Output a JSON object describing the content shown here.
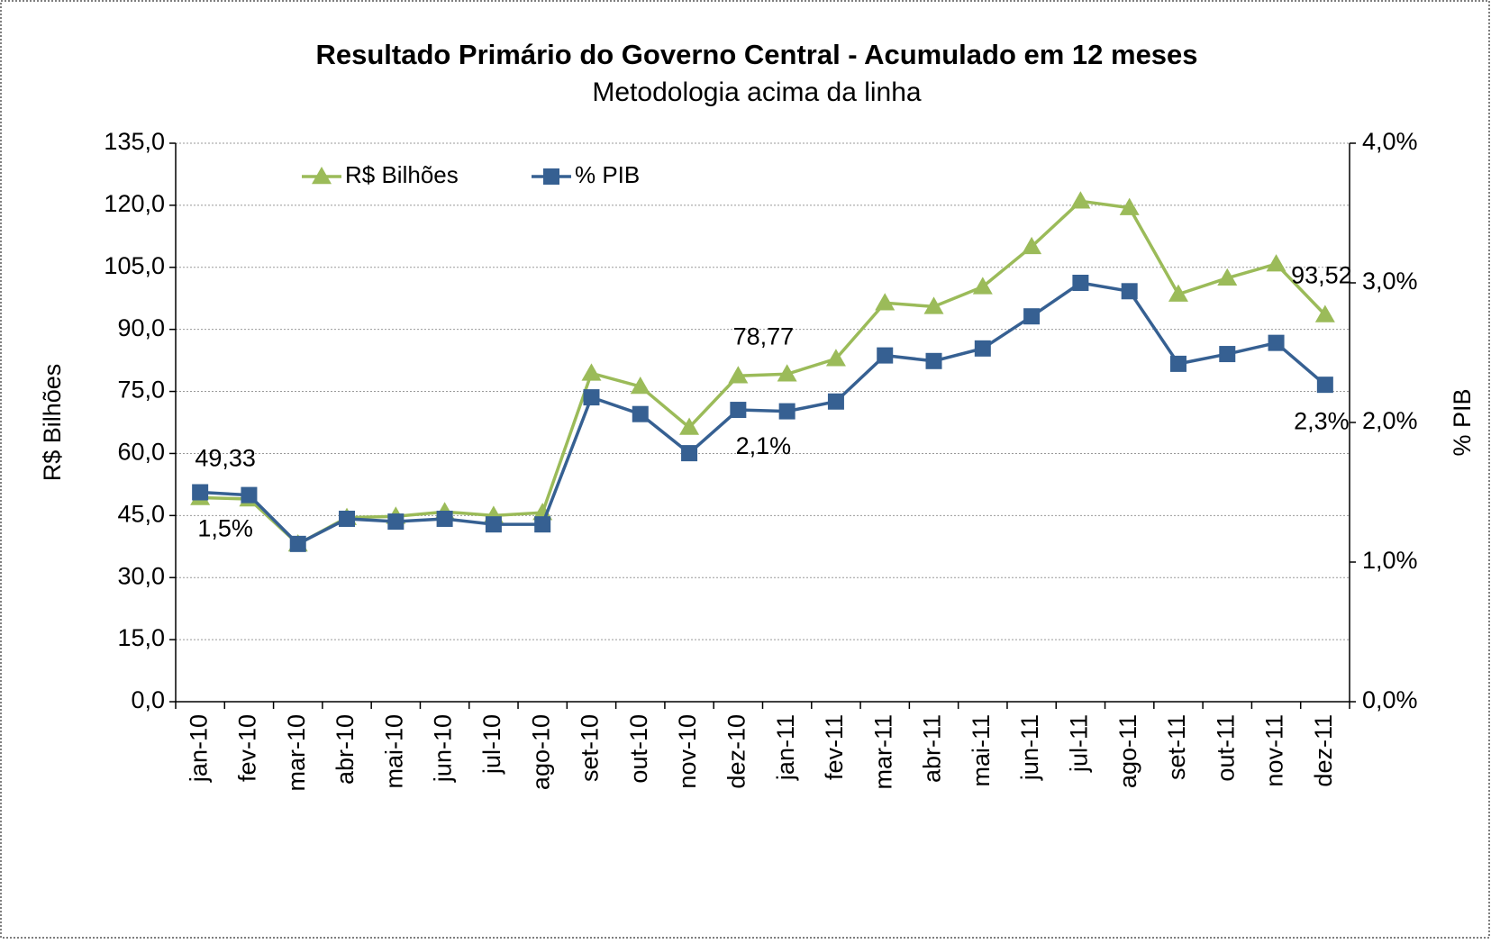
{
  "chart_data": {
    "type": "line",
    "title": "Resultado Primário do Governo Central - Acumulado em 12 meses",
    "subtitle": "Metodologia acima da linha",
    "y_label": "R$ Bilhões",
    "y2_label": "% PIB",
    "categories": [
      "jan-10",
      "fev-10",
      "mar-10",
      "abr-10",
      "mai-10",
      "jun-10",
      "jul-10",
      "ago-10",
      "set-10",
      "out-10",
      "nov-10",
      "dez-10",
      "jan-11",
      "fev-11",
      "mar-11",
      "abr-11",
      "mai-11",
      "jun-11",
      "jul-11",
      "ago-11",
      "set-11",
      "out-11",
      "nov-11",
      "dez-11"
    ],
    "series": [
      {
        "name": "R$ Bilhões",
        "color": "#9bbb59",
        "marker": "triangle",
        "values": [
          49.33,
          49.0,
          38.1,
          44.5,
          44.8,
          45.9,
          45.0,
          45.7,
          79.4,
          76.2,
          66.3,
          78.77,
          79.2,
          82.9,
          96.4,
          95.5,
          100.3,
          110.0,
          121.0,
          119.4,
          98.5,
          102.4,
          105.8,
          93.52
        ],
        "value_labels": [
          "49,33",
          null,
          null,
          null,
          null,
          null,
          null,
          null,
          null,
          null,
          null,
          "78,77",
          null,
          null,
          null,
          null,
          null,
          null,
          null,
          null,
          null,
          null,
          null,
          "93,52"
        ]
      },
      {
        "name": "% PIB",
        "color": "#366092",
        "marker": "square",
        "axis": "y2",
        "values": [
          1.5,
          1.48,
          1.13,
          1.31,
          1.29,
          1.31,
          1.27,
          1.27,
          2.18,
          2.06,
          1.78,
          2.09,
          2.08,
          2.15,
          2.48,
          2.44,
          2.53,
          2.76,
          3.0,
          2.94,
          2.42,
          2.49,
          2.57,
          2.27
        ],
        "value_labels": [
          "1,5%",
          null,
          null,
          null,
          null,
          null,
          null,
          null,
          null,
          null,
          null,
          "2,1%",
          null,
          null,
          null,
          null,
          null,
          null,
          null,
          null,
          null,
          null,
          null,
          "2,3%"
        ]
      }
    ],
    "ylim": [
      0,
      135
    ],
    "yticks": [
      {
        "value": 0,
        "label": "0,0"
      },
      {
        "value": 15,
        "label": "15,0"
      },
      {
        "value": 30,
        "label": "30,0"
      },
      {
        "value": 45,
        "label": "45,0"
      },
      {
        "value": 60,
        "label": "60,0"
      },
      {
        "value": 75,
        "label": "75,0"
      },
      {
        "value": 90,
        "label": "90,0"
      },
      {
        "value": 105,
        "label": "105,0"
      },
      {
        "value": 120,
        "label": "120,0"
      },
      {
        "value": 135,
        "label": "135,0"
      }
    ],
    "y2lim": [
      0,
      4
    ],
    "y2ticks": [
      {
        "value": 0,
        "label": "0,0%"
      },
      {
        "value": 1,
        "label": "1,0%"
      },
      {
        "value": 2,
        "label": "2,0%"
      },
      {
        "value": 3,
        "label": "3,0%"
      },
      {
        "value": 4,
        "label": "4,0%"
      }
    ],
    "grid": true,
    "legend": "top-left"
  }
}
